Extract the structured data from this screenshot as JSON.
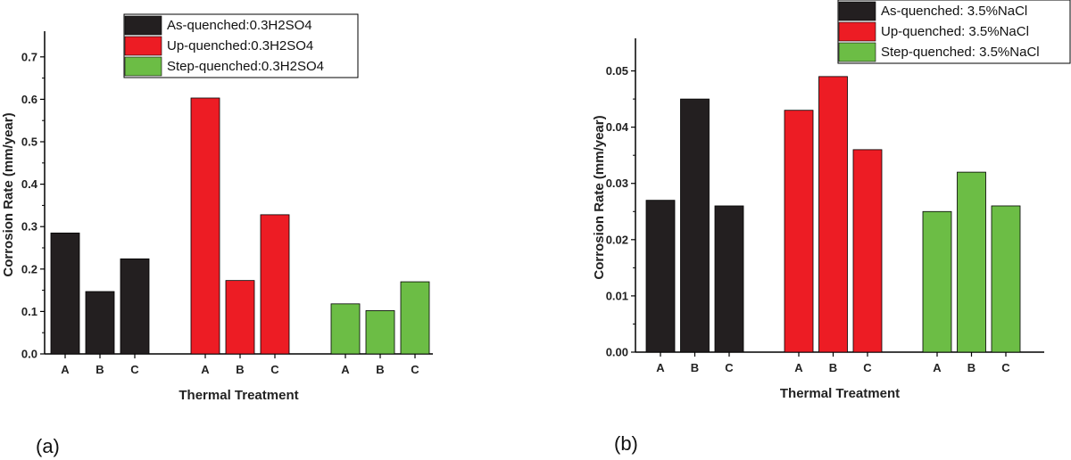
{
  "chart_data": [
    {
      "type": "bar",
      "panel_label": "(a)",
      "xlabel": "Thermal Treatment",
      "ylabel": "Corrosion Rate (mm/year)",
      "ylim": [
        0,
        0.75
      ],
      "yticks": [
        "0.0",
        "0.1",
        "0.2",
        "0.3",
        "0.4",
        "0.5",
        "0.6",
        "0.7"
      ],
      "legend_position": "top-center",
      "categories": [
        "A",
        "B",
        "C"
      ],
      "series": [
        {
          "name": "As-quenched:0.3H2SO4",
          "color": "#231f20",
          "values": [
            0.285,
            0.147,
            0.224
          ]
        },
        {
          "name": "Up-quenched:0.3H2SO4",
          "color": "#ed1c24",
          "values": [
            0.603,
            0.173,
            0.328
          ]
        },
        {
          "name": "Step-quenched:0.3H2SO4",
          "color": "#6cbd45",
          "values": [
            0.118,
            0.102,
            0.17
          ]
        }
      ]
    },
    {
      "type": "bar",
      "panel_label": "(b)",
      "xlabel": "Thermal Treatment",
      "ylabel": "Corrosion Rate (mm/year)",
      "ylim": [
        0,
        0.055
      ],
      "yticks": [
        "0.00",
        "0.01",
        "0.02",
        "0.03",
        "0.04",
        "0.05"
      ],
      "legend_position": "top-right",
      "categories": [
        "A",
        "B",
        "C"
      ],
      "series": [
        {
          "name": "As-quenched: 3.5%NaCl",
          "color": "#231f20",
          "values": [
            0.027,
            0.045,
            0.026
          ]
        },
        {
          "name": "Up-quenched: 3.5%NaCl",
          "color": "#ed1c24",
          "values": [
            0.043,
            0.049,
            0.036
          ]
        },
        {
          "name": "Step-quenched: 3.5%NaCl",
          "color": "#6cbd45",
          "values": [
            0.025,
            0.032,
            0.026
          ]
        }
      ]
    }
  ]
}
